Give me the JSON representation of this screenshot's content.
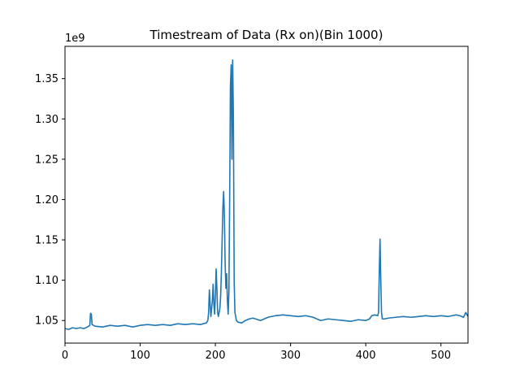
{
  "chart_data": {
    "type": "line",
    "title": "Timestream of Data (Rx on)(Bin 1000)",
    "xlabel": "",
    "ylabel": "",
    "y_offset_label": "1e9",
    "xlim": [
      0,
      536
    ],
    "ylim": [
      1.022,
      1.39
    ],
    "x_ticks": [
      0,
      100,
      200,
      300,
      400,
      500
    ],
    "x_tick_labels": [
      "0",
      "100",
      "200",
      "300",
      "400",
      "500"
    ],
    "y_ticks": [
      1.05,
      1.1,
      1.15,
      1.2,
      1.25,
      1.3,
      1.35
    ],
    "y_tick_labels": [
      "1.05",
      "1.10",
      "1.15",
      "1.20",
      "1.25",
      "1.30",
      "1.35"
    ],
    "grid": false,
    "line_color": "#1f77b4",
    "series": [
      {
        "values_scale": "1e9",
        "points": [
          [
            0,
            1.04
          ],
          [
            5,
            1.039
          ],
          [
            10,
            1.041
          ],
          [
            15,
            1.04
          ],
          [
            20,
            1.041
          ],
          [
            25,
            1.04
          ],
          [
            30,
            1.042
          ],
          [
            33,
            1.044
          ],
          [
            34,
            1.059
          ],
          [
            35,
            1.058
          ],
          [
            36,
            1.045
          ],
          [
            40,
            1.043
          ],
          [
            50,
            1.042
          ],
          [
            60,
            1.044
          ],
          [
            70,
            1.043
          ],
          [
            80,
            1.044
          ],
          [
            90,
            1.042
          ],
          [
            100,
            1.044
          ],
          [
            110,
            1.045
          ],
          [
            120,
            1.044
          ],
          [
            130,
            1.045
          ],
          [
            140,
            1.044
          ],
          [
            150,
            1.046
          ],
          [
            160,
            1.045
          ],
          [
            170,
            1.046
          ],
          [
            180,
            1.045
          ],
          [
            188,
            1.047
          ],
          [
            190,
            1.05
          ],
          [
            191,
            1.06
          ],
          [
            192,
            1.088
          ],
          [
            193,
            1.07
          ],
          [
            194,
            1.055
          ],
          [
            196,
            1.075
          ],
          [
            197,
            1.095
          ],
          [
            198,
            1.07
          ],
          [
            199,
            1.058
          ],
          [
            200,
            1.08
          ],
          [
            201,
            1.114
          ],
          [
            202,
            1.09
          ],
          [
            203,
            1.06
          ],
          [
            204,
            1.055
          ],
          [
            206,
            1.065
          ],
          [
            207,
            1.08
          ],
          [
            208,
            1.11
          ],
          [
            209,
            1.15
          ],
          [
            210,
            1.19
          ],
          [
            211,
            1.21
          ],
          [
            212,
            1.18
          ],
          [
            213,
            1.12
          ],
          [
            214,
            1.09
          ],
          [
            215,
            1.108
          ],
          [
            216,
            1.075
          ],
          [
            217,
            1.058
          ],
          [
            218,
            1.085
          ],
          [
            219,
            1.2
          ],
          [
            220,
            1.34
          ],
          [
            221,
            1.367
          ],
          [
            222,
            1.25
          ],
          [
            223,
            1.373
          ],
          [
            224,
            1.3
          ],
          [
            225,
            1.1
          ],
          [
            226,
            1.06
          ],
          [
            227,
            1.055
          ],
          [
            228,
            1.05
          ],
          [
            230,
            1.048
          ],
          [
            235,
            1.047
          ],
          [
            240,
            1.05
          ],
          [
            245,
            1.052
          ],
          [
            250,
            1.053
          ],
          [
            260,
            1.05
          ],
          [
            270,
            1.054
          ],
          [
            280,
            1.056
          ],
          [
            290,
            1.057
          ],
          [
            300,
            1.056
          ],
          [
            310,
            1.055
          ],
          [
            320,
            1.056
          ],
          [
            330,
            1.054
          ],
          [
            340,
            1.05
          ],
          [
            350,
            1.052
          ],
          [
            360,
            1.051
          ],
          [
            370,
            1.05
          ],
          [
            380,
            1.049
          ],
          [
            390,
            1.051
          ],
          [
            400,
            1.05
          ],
          [
            405,
            1.052
          ],
          [
            408,
            1.056
          ],
          [
            412,
            1.057
          ],
          [
            416,
            1.056
          ],
          [
            417,
            1.06
          ],
          [
            418,
            1.11
          ],
          [
            419,
            1.151
          ],
          [
            420,
            1.1
          ],
          [
            421,
            1.06
          ],
          [
            422,
            1.052
          ],
          [
            425,
            1.052
          ],
          [
            430,
            1.053
          ],
          [
            440,
            1.054
          ],
          [
            450,
            1.055
          ],
          [
            460,
            1.054
          ],
          [
            470,
            1.055
          ],
          [
            480,
            1.056
          ],
          [
            490,
            1.055
          ],
          [
            500,
            1.056
          ],
          [
            510,
            1.055
          ],
          [
            520,
            1.057
          ],
          [
            525,
            1.056
          ],
          [
            530,
            1.054
          ],
          [
            533,
            1.06
          ],
          [
            536,
            1.055
          ]
        ]
      }
    ]
  }
}
